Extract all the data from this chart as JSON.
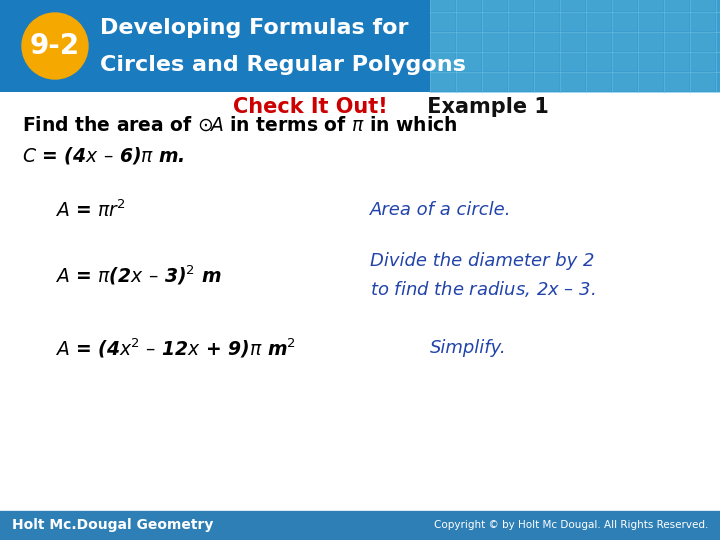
{
  "title_line1": "Developing Formulas for",
  "title_line2": "Circles and Regular Polygons",
  "badge_text": "9-2",
  "subtitle_red": "Check It Out!",
  "subtitle_black": " Example 1",
  "header_bg_color": "#1e7fc2",
  "badge_bg": "#f5a800",
  "badge_text_color": "#ffffff",
  "footer_bg": "#2e7fb5",
  "footer_left": "Holt Mc.Dougal Geometry",
  "footer_right": "Copyright © by Holt Mc Dougal. All Rights Reserved.",
  "body_bg": "#ffffff",
  "problem_text_color": "#000000",
  "step_text_color": "#000000",
  "comment_text_color": "#2244aa",
  "subtitle_red_color": "#cc0000",
  "subtitle_black_color": "#111111",
  "endash": "–"
}
